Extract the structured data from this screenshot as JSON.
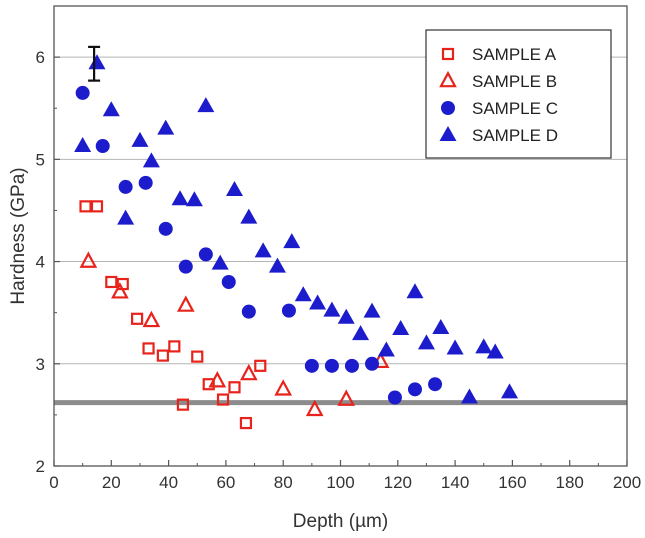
{
  "chart_data": {
    "type": "scatter",
    "xlabel": "Depth (µm)",
    "ylabel": "Hardness (GPa)",
    "xlim": [
      0,
      200
    ],
    "ylim": [
      2,
      6.5
    ],
    "xticks": [
      0,
      20,
      40,
      60,
      80,
      100,
      120,
      140,
      160,
      180,
      200
    ],
    "yticks": [
      2,
      3,
      4,
      5,
      6
    ],
    "x_tick_labels": [
      "0",
      "20",
      "40",
      "60",
      "80",
      "100",
      "120",
      "140",
      "160",
      "180",
      "200"
    ],
    "y_tick_labels": [
      "2",
      "3",
      "4",
      "5",
      "6"
    ],
    "grid": "horizontal",
    "legend_position": "top-right",
    "reference_line": {
      "y": 2.62,
      "color": "#8c8c8c"
    },
    "error_bar": {
      "x": 14,
      "y": 5.94,
      "low": 5.77,
      "high": 6.1
    },
    "series": [
      {
        "name": "SAMPLE A",
        "marker": "square-open",
        "color": "#e8231c",
        "x": [
          11,
          15,
          20,
          24,
          29,
          33,
          38,
          42,
          45,
          50,
          54,
          59,
          63,
          67,
          72
        ],
        "y": [
          4.54,
          4.54,
          3.8,
          3.78,
          3.44,
          3.15,
          3.08,
          3.17,
          2.6,
          3.07,
          2.8,
          2.65,
          2.77,
          2.42,
          2.98
        ]
      },
      {
        "name": "SAMPLE B",
        "marker": "triangle-open",
        "color": "#e8231c",
        "x": [
          12,
          23,
          34,
          46,
          57,
          68,
          80,
          91,
          102,
          114
        ],
        "y": [
          4.0,
          3.7,
          3.42,
          3.57,
          2.83,
          2.9,
          2.75,
          2.55,
          2.65,
          3.02
        ]
      },
      {
        "name": "SAMPLE C",
        "marker": "circle-filled",
        "color": "#1c1ccc",
        "x": [
          10,
          17,
          25,
          32,
          39,
          46,
          53,
          61,
          68,
          82,
          90,
          97,
          104,
          111,
          119,
          126,
          133
        ],
        "y": [
          5.65,
          5.13,
          4.73,
          4.77,
          4.32,
          3.95,
          4.07,
          3.8,
          3.51,
          3.52,
          2.98,
          2.98,
          2.98,
          3.0,
          2.67,
          2.75,
          2.8
        ]
      },
      {
        "name": "SAMPLE D",
        "marker": "triangle-filled",
        "color": "#1c1ccc",
        "x": [
          10,
          15,
          20,
          25,
          30,
          34,
          39,
          44,
          49,
          53,
          58,
          63,
          68,
          73,
          78,
          83,
          87,
          92,
          97,
          102,
          107,
          111,
          116,
          121,
          126,
          130,
          135,
          140,
          145,
          150,
          154,
          159
        ],
        "y": [
          5.13,
          5.94,
          5.48,
          4.42,
          5.18,
          4.98,
          5.3,
          4.61,
          4.6,
          5.52,
          3.98,
          4.7,
          4.43,
          4.1,
          3.95,
          4.19,
          3.67,
          3.59,
          3.52,
          3.45,
          3.29,
          3.51,
          3.13,
          3.34,
          3.7,
          3.2,
          3.35,
          3.15,
          2.67,
          3.16,
          3.11,
          2.72
        ]
      }
    ]
  }
}
